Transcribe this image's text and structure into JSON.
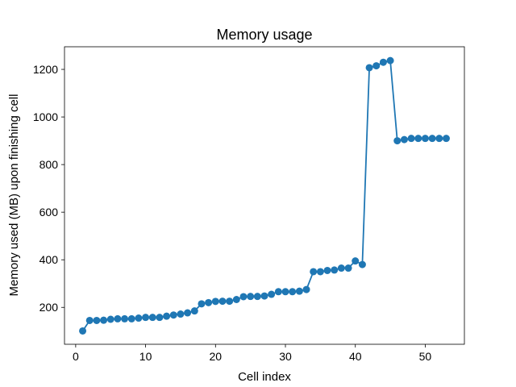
{
  "chart_data": {
    "type": "line",
    "title": "Memory usage",
    "xlabel": "Cell index",
    "ylabel": "Memory used (MB) upon finishing cell",
    "xlim": [
      -1.6,
      55.6
    ],
    "ylim": [
      45,
      1295
    ],
    "xticks": [
      0,
      10,
      20,
      30,
      40,
      50
    ],
    "yticks": [
      200,
      400,
      600,
      800,
      1000,
      1200
    ],
    "grid": false,
    "legend": "none",
    "marker": "circle",
    "color": "#1f77b4",
    "series": [
      {
        "x": [
          1,
          2,
          3,
          4,
          5,
          6,
          7,
          8,
          9,
          10,
          11,
          12,
          13,
          14,
          15,
          16,
          17,
          18,
          19,
          20,
          21,
          22,
          23,
          24,
          25,
          26,
          27,
          28,
          29,
          30,
          31,
          32,
          33,
          34,
          35,
          36,
          37,
          38,
          39,
          40,
          41,
          42,
          43,
          44,
          45,
          46,
          47,
          48,
          49,
          50,
          51,
          52,
          53
        ],
        "values": [
          101,
          145,
          145,
          146,
          150,
          152,
          152,
          152,
          155,
          158,
          158,
          158,
          163,
          168,
          172,
          177,
          185,
          215,
          220,
          225,
          226,
          226,
          233,
          245,
          246,
          246,
          248,
          255,
          266,
          266,
          266,
          268,
          275,
          350,
          350,
          355,
          357,
          365,
          365,
          395,
          380,
          1207,
          1215,
          1230,
          1237,
          900,
          905,
          910,
          910,
          910,
          910,
          910,
          910
        ]
      }
    ]
  }
}
